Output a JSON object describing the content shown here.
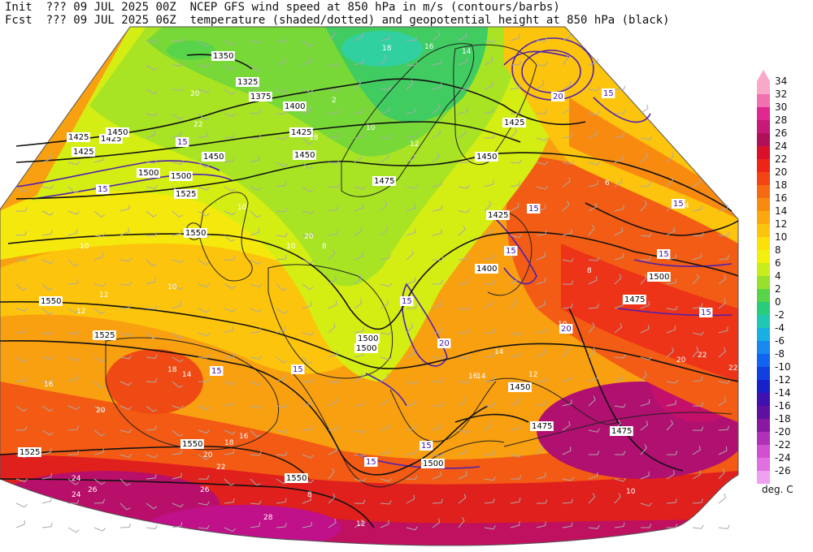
{
  "header": {
    "init_label": "Init",
    "init_value": "??? 09 JUL 2025 00Z",
    "fcst_label": "Fcst",
    "fcst_value": "??? 09 JUL 2025 06Z",
    "title_line1": "NCEP GFS wind speed at 850 hPa in m/s (contours/barbs)",
    "title_line2": "temperature (shaded/dotted) and geopotential height at 850 hPa (black)"
  },
  "legend": {
    "levels": [
      "34",
      "32",
      "30",
      "28",
      "26",
      "24",
      "22",
      "20",
      "18",
      "16",
      "14",
      "12",
      "10",
      "8",
      "6",
      "4",
      "2",
      "0",
      "-2",
      "-4",
      "-6",
      "-8",
      "-10",
      "-12",
      "-14",
      "-16",
      "-18",
      "-20",
      "-22",
      "-24",
      "-26"
    ],
    "colors": [
      "#f8a8c8",
      "#f070b0",
      "#e02890",
      "#c81878",
      "#b0105a",
      "#d8102a",
      "#ee2418",
      "#f34514",
      "#f66a12",
      "#f98a10",
      "#fba80e",
      "#fcc40c",
      "#fde00a",
      "#f2f00c",
      "#c8ec1c",
      "#98e02c",
      "#58d44a",
      "#28cc7a",
      "#20c8b4",
      "#18b0e0",
      "#1888ee",
      "#1064f0",
      "#1040e0",
      "#1820c8",
      "#4010b0",
      "#6010a0",
      "#8818a0",
      "#b030b8",
      "#d050d0",
      "#e070e0",
      "#f0a0f0"
    ],
    "units": "deg. C"
  },
  "height_labels": [
    "1325",
    "1350",
    "1375",
    "1400",
    "1425",
    "1450",
    "1475",
    "1500",
    "1525",
    "1550"
  ],
  "height_label_instances": [
    {
      "text": "1325"
    },
    {
      "text": "1350"
    },
    {
      "text": "1375"
    },
    {
      "text": "1400"
    },
    {
      "text": "1425"
    },
    {
      "text": "1425"
    },
    {
      "text": "1425"
    },
    {
      "text": "1450"
    },
    {
      "text": "1450"
    },
    {
      "text": "1475"
    },
    {
      "text": "1500"
    },
    {
      "text": "1525"
    },
    {
      "text": "1550"
    },
    {
      "text": "1550"
    },
    {
      "text": "1525"
    },
    {
      "text": "1525"
    },
    {
      "text": "1500"
    },
    {
      "text": "1525"
    },
    {
      "text": "1550"
    },
    {
      "text": "1550"
    },
    {
      "text": "1500"
    },
    {
      "text": "1450"
    },
    {
      "text": "1475"
    },
    {
      "text": "1425"
    },
    {
      "text": "1400"
    },
    {
      "text": "1475"
    },
    {
      "text": "1475"
    },
    {
      "text": "1500"
    },
    {
      "text": "1425"
    },
    {
      "text": "1450"
    },
    {
      "text": "1425"
    },
    {
      "text": "1450"
    },
    {
      "text": "1500"
    },
    {
      "text": "1475"
    },
    {
      "text": "1425"
    },
    {
      "text": "1500"
    }
  ],
  "wind_labels": [
    "15",
    "20",
    "15",
    "15",
    "15",
    "15",
    "15",
    "15",
    "15",
    "15",
    "20",
    "15",
    "15",
    "20",
    "15",
    "15"
  ],
  "temp_labels": [
    "10",
    "10",
    "10",
    "12",
    "10",
    "12",
    "14",
    "16",
    "18",
    "20",
    "20",
    "22",
    "22",
    "24",
    "26",
    "28",
    "26",
    "24",
    "22",
    "20",
    "18",
    "16",
    "14",
    "12",
    "10",
    "8",
    "6",
    "4",
    "8",
    "2",
    "10",
    "12",
    "14",
    "16",
    "18",
    "20",
    "22",
    "20",
    "18",
    "16",
    "14",
    "10",
    "8",
    "12"
  ]
}
